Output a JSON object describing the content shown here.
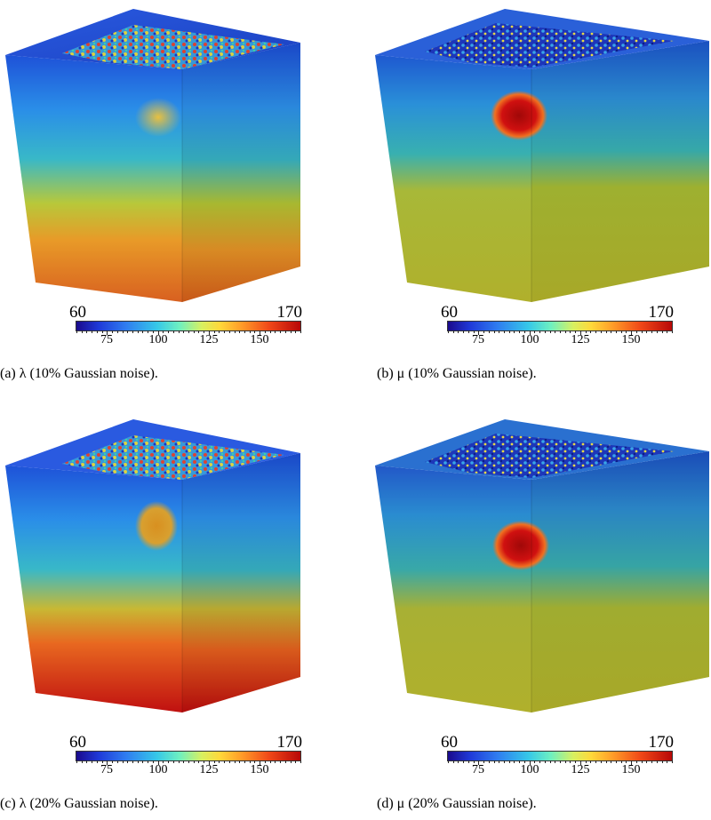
{
  "panels": [
    {
      "caption": "(a) λ (10% Gaussian noise).",
      "cbar_min": "60",
      "cbar_max": "170",
      "ticks": [
        "75",
        "100",
        "125",
        "150"
      ],
      "field": "lambda",
      "top_variant": "noisy-colored",
      "inclusion": "faint"
    },
    {
      "caption": "(b) μ (10% Gaussian noise).",
      "cbar_min": "60",
      "cbar_max": "170",
      "ticks": [
        "75",
        "100",
        "125",
        "150"
      ],
      "field": "mu",
      "top_variant": "noisy-blue",
      "inclusion": "strong"
    },
    {
      "caption": "(c) λ (20% Gaussian noise).",
      "cbar_min": "60",
      "cbar_max": "170",
      "ticks": [
        "75",
        "100",
        "125",
        "150"
      ],
      "field": "lambda",
      "top_variant": "noisy-colored",
      "inclusion": "medium"
    },
    {
      "caption": "(d) μ (20% Gaussian noise).",
      "cbar_min": "60",
      "cbar_max": "170",
      "ticks": [
        "75",
        "100",
        "125",
        "150"
      ],
      "field": "mu",
      "top_variant": "noisy-blue",
      "inclusion": "strong"
    }
  ],
  "colorbar": {
    "min": 60,
    "max": 170,
    "tick_values": [
      75,
      100,
      125,
      150
    ]
  }
}
